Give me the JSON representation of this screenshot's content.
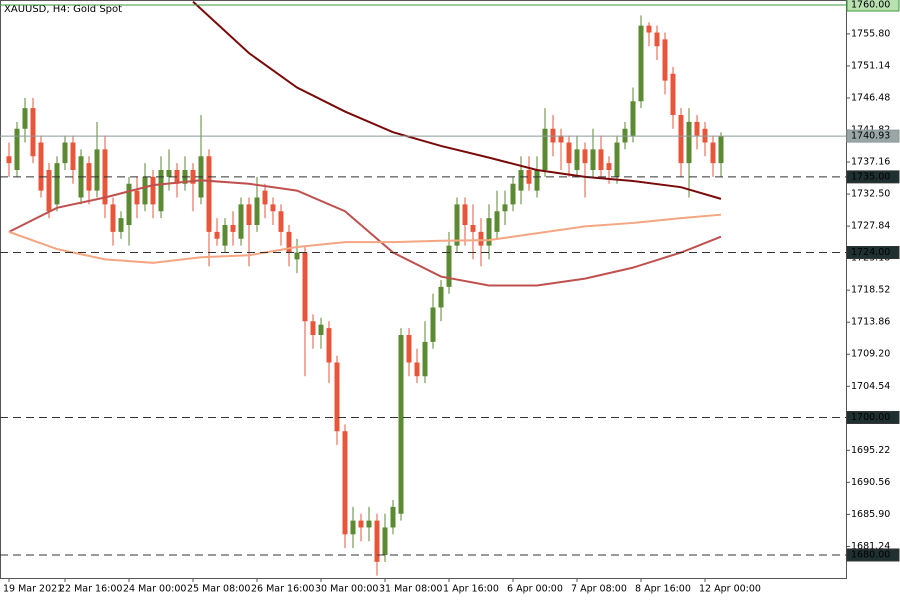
{
  "chart_data": {
    "type": "candlestick",
    "title": "XAUUSD, H4:  Gold Spot",
    "up_color": "#5b8a32",
    "down_color": "#e8553a",
    "categories": [
      "19 Mar 2021",
      null,
      null,
      null,
      null,
      null,
      null,
      "22 Mar 16:00",
      null,
      null,
      null,
      null,
      null,
      null,
      null,
      "24 Mar 00:00",
      null,
      null,
      null,
      null,
      null,
      null,
      null,
      "25 Mar 08:00",
      null,
      null,
      null,
      null,
      null,
      null,
      null,
      "26 Mar 16:00",
      null,
      null,
      null,
      null,
      null,
      null,
      null,
      "30 Mar 00:00",
      null,
      null,
      null,
      null,
      null,
      null,
      null,
      "31 Mar 08:00",
      null,
      null,
      null,
      null,
      null,
      null,
      null,
      "1 Apr 16:00",
      null,
      null,
      null,
      null,
      null,
      null,
      null,
      "6 Apr 00:00",
      null,
      null,
      null,
      null,
      null,
      null,
      null,
      "7 Apr 08:00",
      null,
      null,
      null,
      null,
      null,
      null,
      null,
      "8 Apr 16:00",
      null,
      null,
      null,
      null,
      null,
      null,
      null,
      "12 Apr 00:00",
      null,
      null
    ],
    "open": [
      1738,
      1736,
      1742,
      1745,
      1740,
      1736,
      1731,
      1737,
      1740,
      1732,
      1737,
      1733,
      1739,
      1731,
      1727,
      1728,
      1733,
      1731,
      1735,
      1730,
      1735,
      1736,
      1734,
      1736,
      1732,
      1738,
      1727,
      1725,
      1728,
      1726,
      1731,
      1728,
      1733,
      1731,
      1730,
      1727,
      1723,
      1724,
      1714,
      1712,
      1713,
      1708,
      1698,
      1683,
      1685,
      1684,
      1685,
      1680,
      1684,
      1686,
      1712,
      1708,
      1706,
      1711,
      1716,
      1719,
      1725,
      1731,
      1728,
      1727,
      1725,
      1727,
      1730,
      1731,
      1733,
      1736,
      1733,
      1736,
      1742,
      1741,
      1740,
      1736,
      1739,
      1736,
      1739,
      1737,
      1735,
      1740,
      1741,
      1746,
      1757,
      1756,
      1755,
      1750,
      1744,
      1737,
      1743,
      1742,
      1740,
      1737
    ],
    "high": [
      1740,
      1743,
      1746.5,
      1746.5,
      1741,
      1737,
      1738,
      1741,
      1741,
      1739,
      1738,
      1743,
      1741,
      1732,
      1730,
      1735,
      1735,
      1737,
      1736,
      1738,
      1739,
      1737,
      1738,
      1737,
      1744,
      1739,
      1729,
      1729,
      1730,
      1732,
      1732,
      1735,
      1734,
      1732,
      1731,
      1728,
      1726,
      1725,
      1715,
      1714.5,
      1714,
      1709,
      1699,
      1687,
      1686,
      1687,
      1686,
      1686,
      1688,
      1713,
      1713,
      1710,
      1714,
      1718,
      1720,
      1727,
      1732,
      1732,
      1731,
      1729,
      1731,
      1733,
      1733,
      1735,
      1738,
      1738,
      1738,
      1745,
      1744,
      1742,
      1741,
      1741,
      1740,
      1742,
      1741,
      1738,
      1741,
      1743,
      1748,
      1758.5,
      1757.5,
      1757,
      1756,
      1751,
      1745,
      1745,
      1744,
      1743,
      1741,
      1741.5
    ],
    "low": [
      1735,
      1735,
      1740,
      1737,
      1732,
      1729,
      1730,
      1736,
      1734,
      1731,
      1731,
      1732,
      1729,
      1725,
      1726,
      1725,
      1729,
      1730,
      1729,
      1729,
      1733,
      1732,
      1733,
      1730,
      1731,
      1722,
      1725,
      1724,
      1725,
      1725,
      1722,
      1727,
      1729,
      1728,
      1725,
      1722,
      1721,
      1706,
      1710,
      1710,
      1705,
      1696,
      1681,
      1681,
      1682,
      1682,
      1677,
      1679,
      1683,
      1685,
      1706,
      1705,
      1705,
      1710,
      1714,
      1718,
      1724,
      1725,
      1723,
      1722,
      1723,
      1726,
      1728,
      1730,
      1731,
      1733,
      1732,
      1735,
      1738,
      1736,
      1735,
      1735,
      1732,
      1735,
      1735,
      1734,
      1734,
      1739,
      1740,
      1745,
      1754,
      1752,
      1747,
      1742,
      1735,
      1732,
      1739,
      1738,
      1735,
      1735
    ],
    "close": [
      1737,
      1742,
      1745,
      1738,
      1733,
      1730,
      1737,
      1740,
      1736,
      1738,
      1733,
      1739,
      1731,
      1727,
      1729,
      1734,
      1731,
      1735,
      1731,
      1736,
      1736,
      1734,
      1736,
      1734,
      1738,
      1727,
      1726,
      1728,
      1727,
      1731,
      1728,
      1732,
      1731,
      1730,
      1727,
      1724,
      1724,
      1714,
      1712,
      1713.5,
      1708,
      1698,
      1683,
      1685,
      1684,
      1685,
      1679,
      1684,
      1687,
      1712,
      1708,
      1706,
      1711,
      1716,
      1719,
      1725,
      1731,
      1728,
      1727,
      1725,
      1729,
      1730,
      1731,
      1734,
      1736,
      1734,
      1736,
      1742,
      1740,
      1740,
      1737,
      1739,
      1737,
      1739,
      1736,
      1736,
      1740,
      1742,
      1746,
      1757,
      1756,
      1754,
      1749,
      1744,
      1737,
      1743,
      1741,
      1740,
      1737,
      1740.93
    ],
    "lines": [
      {
        "color": "#7a0a0a",
        "x": [
          23,
          30,
          36,
          42,
          48,
          54,
          60,
          66,
          72,
          78,
          84,
          89
        ],
        "values": [
          1760.5,
          1753,
          1748,
          1744.5,
          1741.5,
          1739.5,
          1737.8,
          1736,
          1735,
          1734.4,
          1733.5,
          1731.8
        ]
      },
      {
        "color": "#c0504d",
        "x": [
          0,
          6,
          12,
          18,
          24,
          30,
          36,
          42,
          48,
          54,
          60,
          66,
          72,
          78,
          84,
          89
        ],
        "values": [
          1727,
          1730.5,
          1732,
          1733.8,
          1734.5,
          1734,
          1733,
          1730,
          1724,
          1720.5,
          1719.2,
          1719.2,
          1720.2,
          1721.8,
          1724,
          1726.3
        ]
      },
      {
        "color": "#f4a582",
        "x": [
          0,
          6,
          12,
          18,
          24,
          30,
          36,
          42,
          48,
          54,
          60,
          66,
          72,
          78,
          84,
          89
        ],
        "values": [
          1727,
          1724.5,
          1723,
          1722.5,
          1723.3,
          1723.6,
          1724.8,
          1725.5,
          1725.5,
          1725.7,
          1725.8,
          1726.8,
          1727.8,
          1728.3,
          1729,
          1729.5
        ]
      }
    ],
    "ylim": [
      1676.65,
      1760.73
    ],
    "yticks": [
      {
        "value": 1755.8,
        "label": "1755.80"
      },
      {
        "value": 1751.14,
        "label": "1751.14"
      },
      {
        "value": 1746.48,
        "label": "1746.48"
      },
      {
        "value": 1741.82,
        "label": "1741.82"
      },
      {
        "value": 1737.16,
        "label": "1737.16"
      },
      {
        "value": 1732.5,
        "label": "1732.50"
      },
      {
        "value": 1727.84,
        "label": "1727.84"
      },
      {
        "value": 1723.18,
        "label": "1723.18"
      },
      {
        "value": 1718.52,
        "label": "1718.52"
      },
      {
        "value": 1713.86,
        "label": "1713.86"
      },
      {
        "value": 1709.2,
        "label": "1709.20"
      },
      {
        "value": 1704.54,
        "label": "1704.54"
      },
      {
        "value": 1695.22,
        "label": "1695.22"
      },
      {
        "value": 1690.56,
        "label": "1690.56"
      },
      {
        "value": 1685.9,
        "label": "1685.90"
      },
      {
        "value": 1681.24,
        "label": "1681.24"
      }
    ],
    "levels": [
      {
        "value": 1760,
        "label": "1760.00",
        "color": "#3c9a3c",
        "style": "solid",
        "label_bg": "#b8e0b0",
        "label_fg": "#000000"
      },
      {
        "value": 1740.93,
        "color": "#8a9a9a",
        "style": "solid",
        "label_bg": "#9aa6a6",
        "label_fg": "#ffffff"
      },
      {
        "value": 1735,
        "label": "1735.00",
        "color": "#333333",
        "style": "dashed",
        "label_bg": "#1f3030",
        "label_fg": "#ffffff"
      },
      {
        "value": 1724,
        "label": "1724.00",
        "color": "#333333",
        "style": "dashed",
        "label_bg": "#1f3030",
        "label_fg": "#ffffff"
      },
      {
        "value": 1700,
        "label": "1700.00",
        "color": "#333333",
        "style": "dashed",
        "label_bg": "#1f3030",
        "label_fg": "#ffffff"
      },
      {
        "value": 1680,
        "label": "1680.00",
        "color": "#333333",
        "style": "dashed",
        "label_bg": "#1f3030",
        "label_fg": "#ffffff"
      }
    ]
  }
}
